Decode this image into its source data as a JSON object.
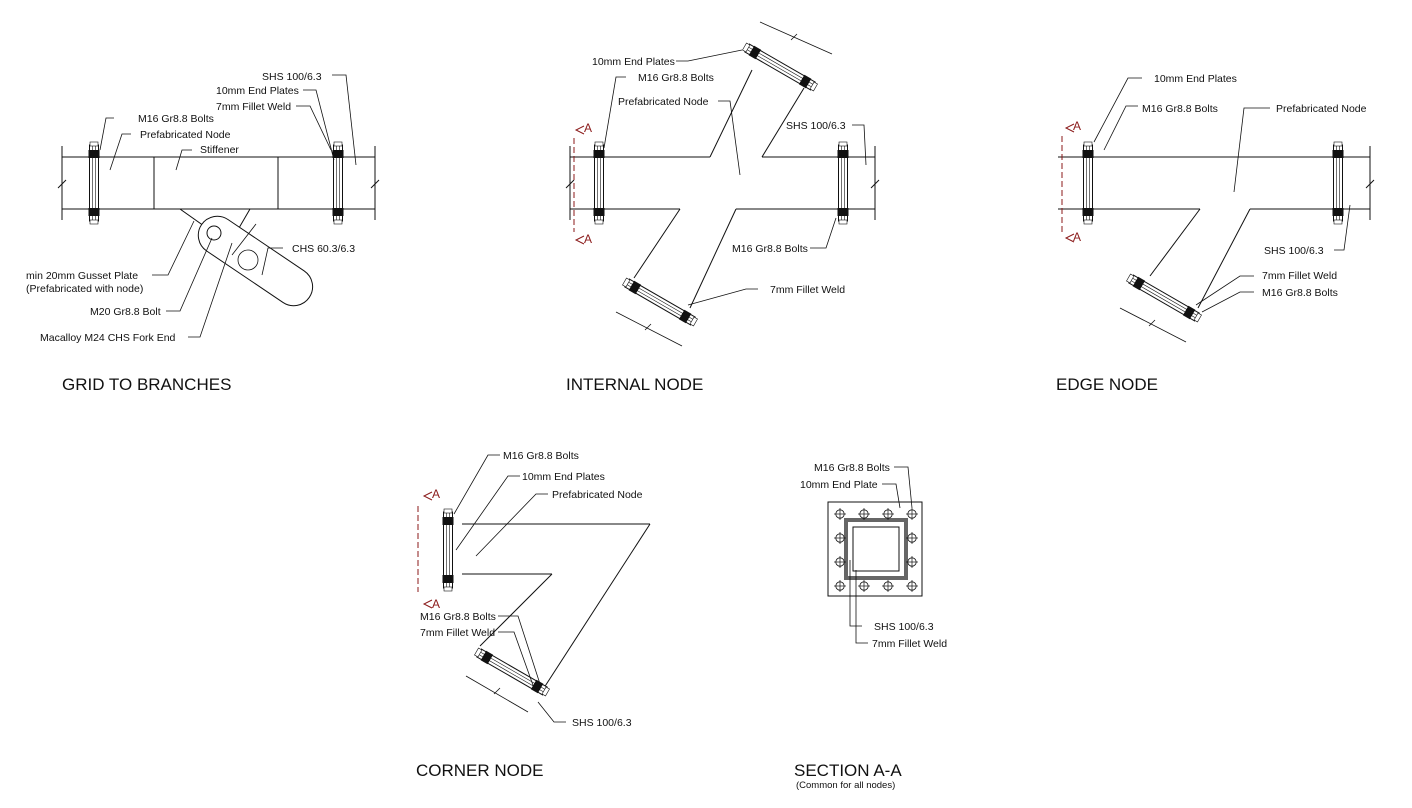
{
  "titles": {
    "grid": "GRID TO BRANCHES",
    "internal": "INTERNAL NODE",
    "edge": "EDGE NODE",
    "corner": "CORNER NODE",
    "section": "SECTION A-A",
    "section_sub": "(Common for all nodes)"
  },
  "section_marker": "A",
  "labels": {
    "grid": {
      "shs": "SHS 100/6.3",
      "end_plates": "10mm End Plates",
      "fillet_weld": "7mm Fillet Weld",
      "bolts": "M16 Gr8.8 Bolts",
      "prefab": "Prefabricated Node",
      "stiffener": "Stiffener",
      "gusset_1": "min 20mm Gusset Plate",
      "gusset_2": "(Prefabricated with node)",
      "m20": "M20 Gr8.8 Bolt",
      "chs": "CHS 60.3/6.3",
      "macalloy": "Macalloy M24 CHS Fork End"
    },
    "internal": {
      "end_plates": "10mm End Plates",
      "bolts": "M16 Gr8.8 Bolts",
      "prefab": "Prefabricated Node",
      "shs": "SHS 100/6.3",
      "bolts_2": "M16 Gr8.8 Bolts",
      "fillet_weld": "7mm Fillet Weld"
    },
    "edge": {
      "end_plates": "10mm End Plates",
      "bolts": "M16 Gr8.8 Bolts",
      "prefab": "Prefabricated Node",
      "shs": "SHS 100/6.3",
      "fillet_weld": "7mm Fillet Weld",
      "bolts_2": "M16 Gr8.8 Bolts"
    },
    "corner": {
      "bolts": "M16 Gr8.8 Bolts",
      "end_plates": "10mm End Plates",
      "prefab": "Prefabricated Node",
      "bolts_2": "M16 Gr8.8 Bolts",
      "fillet_weld": "7mm Fillet Weld",
      "shs": "SHS 100/6.3"
    },
    "section": {
      "bolts": "M16 Gr8.8 Bolts",
      "end_plate": "10mm End Plate",
      "shs": "SHS 100/6.3",
      "fillet_weld": "7mm Fillet Weld"
    }
  }
}
